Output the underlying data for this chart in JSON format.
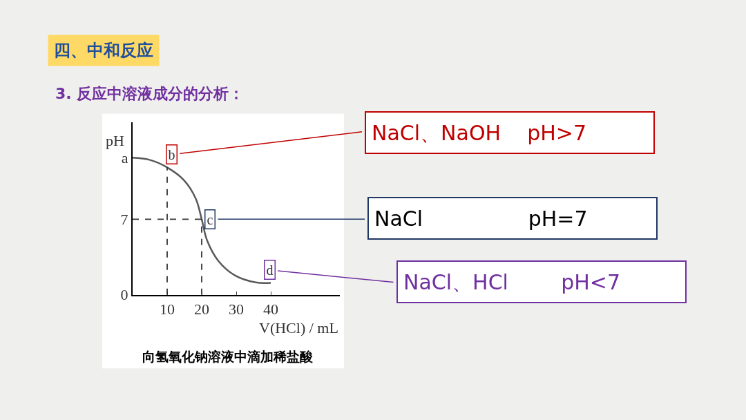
{
  "chart_data": {
    "type": "line",
    "title": "四、中和反应",
    "subtitle": "3. 反应中溶液成分的分析：",
    "xlabel": "V(HCl) / mL",
    "ylabel": "pH",
    "x": [
      0,
      4.9,
      10,
      14.9,
      18.3,
      20,
      21.6,
      24.9,
      29.6,
      35.6,
      40
    ],
    "series": [
      {
        "color": "#595959",
        "values": [
          12.7,
          12.5,
          11.8,
          10.6,
          8.9,
          7,
          5.0,
          3.1,
          1.8,
          1.15,
          1.1
        ]
      }
    ],
    "xlim": [
      0,
      60
    ],
    "ylim": [
      0,
      16
    ],
    "xticks": [
      {
        "value": 0,
        "label": null
      },
      10,
      20,
      30,
      40
    ],
    "yticks": [
      0,
      7,
      {
        "value": 12.7,
        "label": "a"
      }
    ],
    "marker": "none",
    "line_style": "solid",
    "ref_lines": [
      {
        "axis": "x",
        "value": 10,
        "line_style": "dashed",
        "color": "#333333"
      },
      {
        "axis": "x",
        "value": 20,
        "line_style": "dashed",
        "color": "#333333"
      },
      {
        "axis": "y",
        "value": 7,
        "line_style": "dashed",
        "color": "#333333"
      }
    ],
    "annotations": [
      {
        "text": "b",
        "x": 11.3,
        "y": 13.0
      },
      {
        "text": "c",
        "x": 22.3,
        "y": 7
      },
      {
        "text": "d",
        "x": 39.6,
        "y": 2.3
      },
      "NaCl、NaOH    pH>7",
      "NaCl                pH=7",
      "NaCl、HCl        pH<7",
      "向氢氧化钠溶液中滴加稀盐酸"
    ]
  }
}
